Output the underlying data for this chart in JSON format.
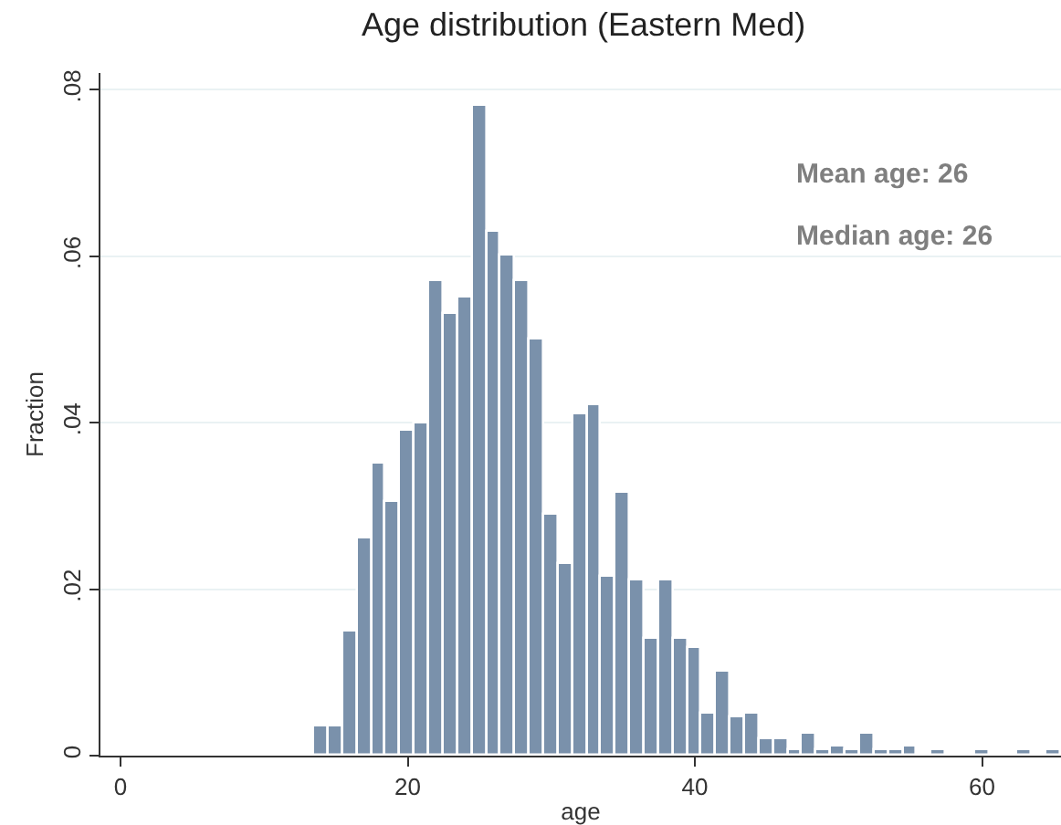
{
  "chart_data": {
    "type": "histogram",
    "title": "Age distribution (Eastern Med)",
    "xlabel": "age",
    "ylabel": "Fraction",
    "bins": [
      13.5,
      14.5,
      15.5,
      16.5,
      17.5,
      18.5,
      19.5,
      20.5,
      21.5,
      22.5,
      23.5,
      24.5,
      25.5,
      26.5,
      27.5,
      28.5,
      29.5,
      30.5,
      31.5,
      32.5,
      33.5,
      34.5,
      35.5,
      36.5,
      37.5,
      38.5,
      39.5,
      40.5,
      41.5,
      42.5,
      43.5,
      44.5,
      45.5,
      46.5,
      47.5,
      48.5,
      49.5,
      50.5,
      51.5,
      52.5,
      53.5,
      54.5,
      55.5,
      56.5,
      57.5,
      58.5,
      59.5,
      60.5,
      61.5,
      62.5,
      63.5,
      64.5,
      65.5
    ],
    "values": [
      0.0035,
      0.0035,
      0.015,
      0.026,
      0.035,
      0.0305,
      0.039,
      0.04,
      0.057,
      0.053,
      0.055,
      0.078,
      0.063,
      0.06,
      0.057,
      0.05,
      0.029,
      0.023,
      0.041,
      0.042,
      0.0215,
      0.0315,
      0.021,
      0.014,
      0.021,
      0.014,
      0.013,
      0.005,
      0.01,
      0.0045,
      0.005,
      0.002,
      0.002,
      0.0007,
      0.0027,
      0.0007,
      0.0012,
      0.0007,
      0.0027,
      0.0007,
      0.0007,
      0.0012,
      0,
      0.0007,
      0,
      0,
      0.0007,
      0,
      0,
      0.0007,
      0,
      0.0007
    ],
    "color": "#7a91ab",
    "xlim": [
      -1.4,
      65.5
    ],
    "xticks": [
      0,
      20,
      40,
      60
    ],
    "ylim": [
      0,
      0.082
    ],
    "yticks": [
      {
        "value": 0,
        "label": "0"
      },
      {
        "value": 0.02,
        "label": ".02"
      },
      {
        "value": 0.04,
        "label": ".04"
      },
      {
        "value": 0.06,
        "label": ".06"
      },
      {
        "value": 0.08,
        "label": ".08"
      }
    ],
    "grid": "y",
    "annotations": [
      "Mean age: 26",
      "Median age: 26"
    ]
  }
}
